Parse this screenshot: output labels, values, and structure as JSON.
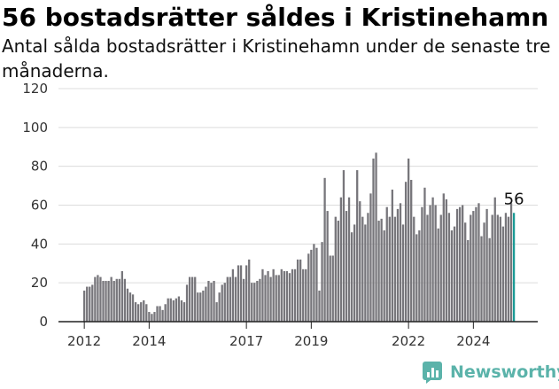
{
  "header": {
    "title": "56 bostadsrätter såldes i Kristinehamn",
    "subtitle": "Antal sålda bostadsrätter i Kristinehamn under de senaste tre månaderna."
  },
  "brand": {
    "name": "Newsworthy",
    "icon": "newsworthy-logo-icon",
    "color": "#5bb3aa"
  },
  "colors": {
    "bar": "#77767b",
    "highlight": "#1a9a95",
    "grid": "#dcdcdc",
    "axis": "#222222"
  },
  "chart_data": {
    "type": "bar",
    "title": "56 bostadsrätter såldes i Kristinehamn",
    "ylim": [
      0,
      120
    ],
    "yticks": [
      0,
      20,
      40,
      60,
      80,
      100,
      120
    ],
    "xticks": [
      {
        "label": "2012",
        "index": 0
      },
      {
        "label": "2014",
        "index": 24
      },
      {
        "label": "2017",
        "index": 60
      },
      {
        "label": "2019",
        "index": 84
      },
      {
        "label": "2022",
        "index": 120
      },
      {
        "label": "2024",
        "index": 144
      }
    ],
    "grid": true,
    "highlight_label": "56",
    "values": [
      16,
      18,
      18,
      19,
      23,
      24,
      23,
      21,
      21,
      21,
      23,
      21,
      22,
      22,
      26,
      22,
      17,
      15,
      14,
      10,
      9,
      10,
      11,
      9,
      5,
      4,
      5,
      8,
      8,
      6,
      9,
      12,
      12,
      11,
      12,
      13,
      11,
      10,
      19,
      23,
      23,
      23,
      15,
      15,
      16,
      18,
      21,
      20,
      21,
      10,
      15,
      19,
      20,
      23,
      23,
      27,
      23,
      29,
      29,
      22,
      29,
      32,
      20,
      20,
      21,
      22,
      27,
      24,
      26,
      23,
      27,
      24,
      24,
      27,
      26,
      26,
      25,
      27,
      27,
      32,
      32,
      27,
      27,
      35,
      37,
      40,
      38,
      16,
      41,
      74,
      57,
      34,
      34,
      54,
      52,
      64,
      78,
      57,
      64,
      46,
      50,
      78,
      62,
      54,
      50,
      56,
      66,
      84,
      87,
      52,
      53,
      47,
      59,
      54,
      68,
      54,
      58,
      61,
      50,
      72,
      84,
      73,
      54,
      45,
      47,
      59,
      69,
      55,
      60,
      64,
      60,
      48,
      55,
      66,
      63,
      56,
      47,
      49,
      58,
      59,
      60,
      51,
      42,
      55,
      57,
      59,
      61,
      44,
      51,
      58,
      43,
      55,
      64,
      55,
      54,
      49,
      56,
      54,
      61,
      56
    ]
  }
}
